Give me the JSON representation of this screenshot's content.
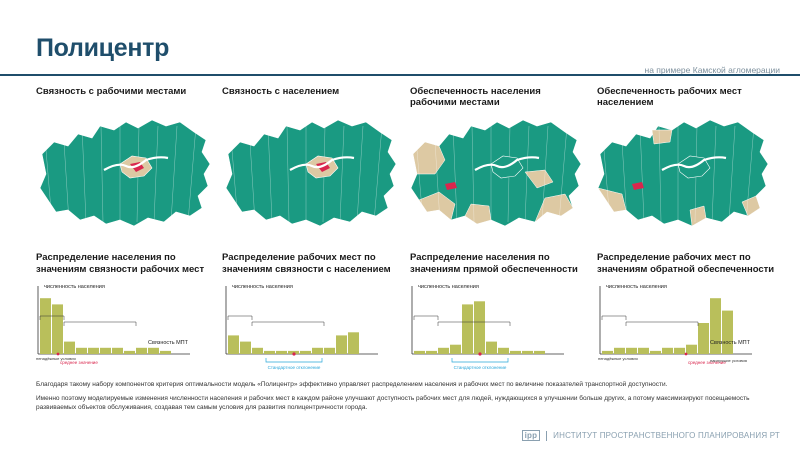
{
  "header": {
    "title": "Полицентр",
    "subtitle": "на примере Камской агломерации"
  },
  "colors": {
    "teal": "#1a9a82",
    "beige": "#ddc9a3",
    "red": "#d9264d",
    "bar": "#b9bf5b",
    "dark_blue": "#1f4e6b",
    "cyan": "#29a6d9"
  },
  "panels": [
    {
      "heading": "Связность с рабочими местами",
      "dist_heading": "Распределение населения по значениям связности рабочих мест",
      "y_label": "численность населения",
      "x_label": "Связность МПТ",
      "low_label": "ненадёжные условия",
      "mid_label": "среднее значение",
      "dev_label": ""
    },
    {
      "heading": "Связность с населением",
      "dist_heading": "Распределение рабочих мест по значениям связности с населением",
      "y_label": "численность населения",
      "x_label": "",
      "low_label": "",
      "mid_label": "",
      "dev_label": "Стандартное отклонение"
    },
    {
      "heading": "Обеспеченность населения рабочими местами",
      "dist_heading": "Распределение населения по значениям прямой обеспеченности",
      "y_label": "численность населения",
      "x_label": "",
      "low_label": "",
      "mid_label": "",
      "dev_label": "Стандартное отклонение"
    },
    {
      "heading": "Обеспеченность рабочих мест населением",
      "dist_heading": "Распределение рабочих мест по значениям обратной обеспеченности",
      "y_label": "численность населения",
      "x_label": "Связность МПТ",
      "low_label": "ненадёжные условия",
      "mid_label": "среднее значение",
      "dev_label": "",
      "high_label": "наилучшие условия"
    }
  ],
  "chart_data": [
    {
      "type": "bar",
      "values": [
        9,
        8,
        2,
        1,
        1,
        1,
        1,
        0.5,
        1,
        1,
        0.5
      ]
    },
    {
      "type": "bar",
      "values": [
        3,
        2,
        1,
        0.5,
        0.5,
        0.5,
        0.5,
        1,
        1,
        3,
        3.5
      ]
    },
    {
      "type": "bar",
      "values": [
        0.5,
        0.5,
        1,
        1.5,
        8,
        8.5,
        2,
        1,
        0.5,
        0.5,
        0.5
      ]
    },
    {
      "type": "bar",
      "values": [
        0.5,
        1,
        1,
        1,
        0.5,
        1,
        1,
        1.5,
        5,
        9,
        7
      ]
    }
  ],
  "footnotes": [
    "Благодаря такому набору компонентов критерия оптимальности модель «Полицентр» эффективно управляет распределением населения и рабочих мест по величине показателей транспортной доступности.",
    "Именно поэтому моделируемые изменения численности населения и рабочих мест в каждом районе улучшают доступность рабочих мест для людей, нуждающихся в улучшении больше других, а потому максимизируют посещаемость развиваемых объектов обслуживания, создавая тем самым условия для развития полицентричности города."
  ],
  "footer": {
    "logo": "ipp",
    "org": "ИНСТИТУТ ПРОСТРАНСТВЕННОГО ПЛАНИРОВАНИЯ РТ"
  }
}
